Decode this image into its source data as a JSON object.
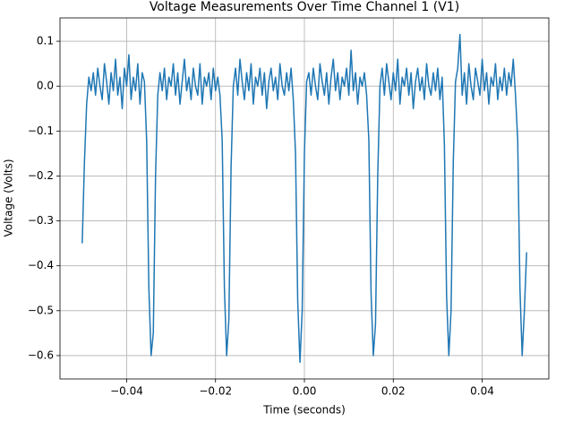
{
  "chart_data": {
    "type": "line",
    "title": "Voltage Measurements Over Time Channel 1 (V1)",
    "x_label": "Time (seconds)",
    "y_label": "Voltage (Volts)",
    "grid": true,
    "xlim": [
      -0.055,
      0.055
    ],
    "ylim": [
      -0.652,
      0.152
    ],
    "xticks": [
      {
        "value": -0.04,
        "label": "−0.04"
      },
      {
        "value": -0.02,
        "label": "−0.02"
      },
      {
        "value": 0,
        "label": "0.00"
      },
      {
        "value": 0.02,
        "label": "0.02"
      },
      {
        "value": 0.04,
        "label": "0.04"
      }
    ],
    "yticks": [
      0.1,
      {
        "value": 0,
        "label": "0.0"
      },
      {
        "value": -0.1,
        "label": "−0.1"
      },
      {
        "value": -0.2,
        "label": "−0.2"
      },
      {
        "value": -0.3,
        "label": "−0.3"
      },
      {
        "value": -0.4,
        "label": "−0.4"
      },
      {
        "value": -0.5,
        "label": "−0.5"
      },
      {
        "value": -0.6,
        "label": "−0.6"
      }
    ],
    "x": [
      -0.05,
      -0.0495,
      -0.049,
      -0.0485,
      -0.048,
      -0.0475,
      -0.047,
      -0.0465,
      -0.046,
      -0.0455,
      -0.045,
      -0.0445,
      -0.044,
      -0.0435,
      -0.043,
      -0.0425,
      -0.042,
      -0.0415,
      -0.041,
      -0.0405,
      -0.04,
      -0.0395,
      -0.039,
      -0.0385,
      -0.038,
      -0.0375,
      -0.037,
      -0.0365,
      -0.036,
      -0.0355,
      -0.035,
      -0.0345,
      -0.034,
      -0.0335,
      -0.033,
      -0.0325,
      -0.032,
      -0.0315,
      -0.031,
      -0.0305,
      -0.03,
      -0.0295,
      -0.029,
      -0.0285,
      -0.028,
      -0.0275,
      -0.027,
      -0.0265,
      -0.026,
      -0.0255,
      -0.025,
      -0.0245,
      -0.024,
      -0.0235,
      -0.023,
      -0.0225,
      -0.022,
      -0.0215,
      -0.021,
      -0.0205,
      -0.02,
      -0.0195,
      -0.019,
      -0.0185,
      -0.018,
      -0.0175,
      -0.017,
      -0.0165,
      -0.016,
      -0.0155,
      -0.015,
      -0.0145,
      -0.014,
      -0.0135,
      -0.013,
      -0.0125,
      -0.012,
      -0.0115,
      -0.011,
      -0.0105,
      -0.01,
      -0.0095,
      -0.009,
      -0.0085,
      -0.008,
      -0.0075,
      -0.007,
      -0.0065,
      -0.006,
      -0.0055,
      -0.005,
      -0.0045,
      -0.004,
      -0.0035,
      -0.003,
      -0.0025,
      -0.002,
      -0.0015,
      -0.001,
      -0.0005,
      0,
      0.0005,
      0.001,
      0.0015,
      0.002,
      0.0025,
      0.003,
      0.0035,
      0.004,
      0.0045,
      0.005,
      0.0055,
      0.006,
      0.0065,
      0.007,
      0.0075,
      0.008,
      0.0085,
      0.009,
      0.0095,
      0.01,
      0.0105,
      0.011,
      0.0115,
      0.012,
      0.0125,
      0.013,
      0.0135,
      0.014,
      0.0145,
      0.015,
      0.0155,
      0.016,
      0.0165,
      0.017,
      0.0175,
      0.018,
      0.0185,
      0.019,
      0.0195,
      0.02,
      0.0205,
      0.021,
      0.0215,
      0.022,
      0.0225,
      0.023,
      0.0235,
      0.024,
      0.0245,
      0.025,
      0.0255,
      0.026,
      0.0265,
      0.027,
      0.0275,
      0.028,
      0.0285,
      0.029,
      0.0295,
      0.03,
      0.0305,
      0.031,
      0.0315,
      0.032,
      0.0325,
      0.033,
      0.0335,
      0.034,
      0.0345,
      0.035,
      0.0355,
      0.036,
      0.0365,
      0.037,
      0.0375,
      0.038,
      0.0385,
      0.039,
      0.0395,
      0.04,
      0.0405,
      0.041,
      0.0415,
      0.042,
      0.0425,
      0.043,
      0.0435,
      0.044,
      0.0445,
      0.045,
      0.0455,
      0.046,
      0.0465,
      0.047,
      0.0475,
      0.048,
      0.0485,
      0.049,
      0.0495,
      0.05
    ],
    "series": [
      {
        "color": "#1f77b4",
        "values": [
          -0.35,
          -0.17,
          -0.04,
          0.02,
          -0.01,
          0.03,
          -0.02,
          0.04,
          0.0,
          -0.03,
          0.05,
          0.01,
          -0.04,
          0.03,
          -0.01,
          0.06,
          -0.02,
          0.02,
          -0.05,
          0.04,
          0.0,
          0.07,
          -0.03,
          0.02,
          -0.01,
          0.05,
          -0.04,
          0.03,
          0.01,
          -0.12,
          -0.45,
          -0.6,
          -0.55,
          -0.2,
          -0.02,
          0.03,
          -0.01,
          0.04,
          -0.03,
          0.02,
          0.0,
          0.05,
          -0.02,
          0.03,
          -0.04,
          0.01,
          0.06,
          -0.01,
          0.02,
          -0.03,
          0.04,
          0.0,
          -0.02,
          0.05,
          -0.04,
          0.02,
          0.0,
          0.03,
          -0.03,
          0.04,
          -0.01,
          0.02,
          -0.02,
          -0.12,
          -0.45,
          -0.6,
          -0.52,
          -0.18,
          0.0,
          0.04,
          -0.02,
          0.06,
          0.01,
          -0.03,
          0.03,
          -0.01,
          0.05,
          -0.04,
          0.02,
          0.0,
          0.04,
          -0.02,
          0.03,
          -0.05,
          0.01,
          0.04,
          -0.01,
          0.02,
          -0.03,
          0.05,
          0.0,
          -0.02,
          0.03,
          -0.01,
          0.04,
          -0.03,
          -0.15,
          -0.48,
          -0.615,
          -0.5,
          -0.15,
          0.01,
          0.03,
          -0.02,
          0.04,
          0.0,
          -0.03,
          0.05,
          0.01,
          -0.02,
          0.03,
          -0.04,
          0.02,
          0.06,
          -0.01,
          0.03,
          -0.03,
          0.02,
          0.0,
          0.04,
          -0.02,
          0.08,
          -0.01,
          0.03,
          -0.04,
          0.02,
          0.0,
          0.03,
          -0.02,
          -0.12,
          -0.46,
          -0.6,
          -0.53,
          -0.2,
          0.0,
          0.04,
          -0.02,
          0.05,
          0.01,
          -0.03,
          0.03,
          -0.01,
          0.06,
          -0.04,
          0.02,
          0.0,
          0.04,
          -0.02,
          0.03,
          -0.05,
          0.01,
          0.04,
          -0.01,
          0.02,
          -0.03,
          0.05,
          0.0,
          -0.02,
          0.03,
          -0.01,
          0.04,
          -0.03,
          0.02,
          -0.13,
          -0.47,
          -0.6,
          -0.5,
          -0.17,
          0.01,
          0.04,
          0.115,
          -0.02,
          0.03,
          -0.04,
          0.05,
          0.0,
          -0.03,
          0.04,
          0.01,
          -0.02,
          0.06,
          -0.01,
          0.03,
          -0.04,
          0.02,
          0.0,
          0.05,
          -0.03,
          0.02,
          -0.01,
          0.04,
          -0.02,
          0.03,
          0.0,
          0.06,
          -0.02,
          -0.12,
          -0.45,
          -0.6,
          -0.5,
          -0.37
        ]
      }
    ]
  }
}
